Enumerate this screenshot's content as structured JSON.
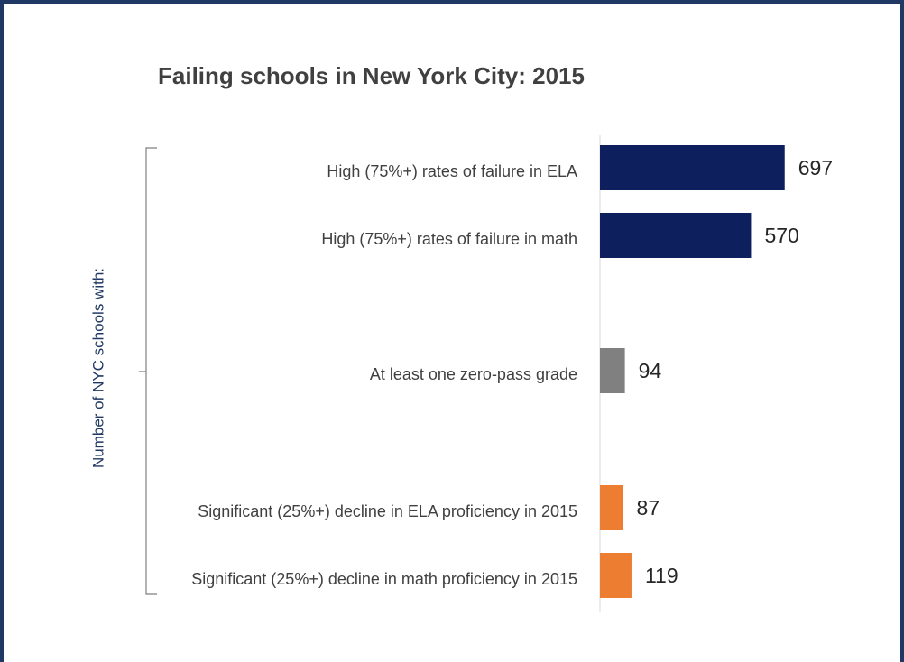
{
  "chart_data": {
    "type": "hbar",
    "title": "Failing schools in New York City: 2015",
    "y_label": "Number of NYC schools with:",
    "categories": [
      "High (75%+) rates of failure in ELA",
      "High (75%+) rates of failure in math",
      null,
      "At least one zero-pass grade",
      null,
      "Significant (25%+) decline in ELA proficiency in 2015",
      "Significant (25%+) decline in math proficiency in 2015"
    ],
    "values": [
      697,
      570,
      null,
      94,
      null,
      87,
      119
    ],
    "colors": [
      "#0d1f5c",
      "#0d1f5c",
      null,
      "#808080",
      null,
      "#ed7d31",
      "#ed7d31"
    ],
    "xlim": [
      0,
      800
    ]
  }
}
